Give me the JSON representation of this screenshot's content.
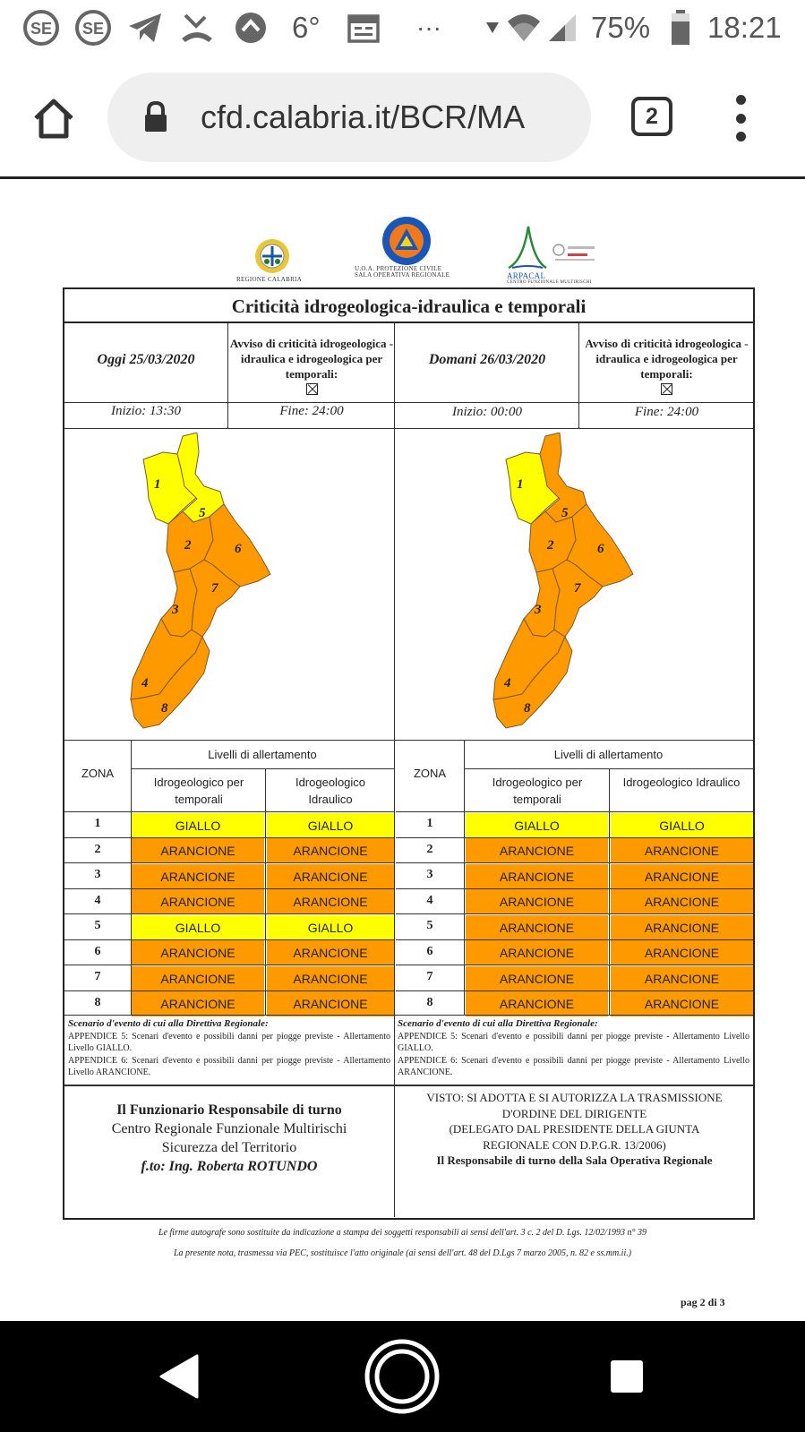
{
  "status_bar": {
    "temperature": "6°",
    "ellipsis": "···",
    "battery": "75%",
    "time": "18:21"
  },
  "browser": {
    "url": "cfd.calabria.it/BCR/MA",
    "tab_count": "2"
  },
  "doc": {
    "logos": {
      "regione": "REGIONE CALABRIA",
      "protezione_1": "U.O.A. PROTEZIONE CIVILE",
      "protezione_2": "SALA OPERATIVA REGIONALE",
      "arpacal": "ARPACAL",
      "arpacal_sub": "CENTRO FUNZIONALE MULTIRISCHI"
    },
    "title": "Criticità idrogeologica-idraulica e temporali",
    "today": {
      "date": "Oggi 25/03/2020",
      "avviso": "Avviso di criticità idrogeologica - idraulica e idrogeologica per temporali:",
      "start": "Inizio: 13:30",
      "end": "Fine: 24:00",
      "zone_colors": {
        "1": "#ffff00",
        "2": "#ff9900",
        "3": "#ff9900",
        "4": "#ff9900",
        "5": "#ffff00",
        "6": "#ff9900",
        "7": "#ff9900",
        "8": "#ff9900"
      }
    },
    "tomorrow": {
      "date": "Domani 26/03/2020",
      "avviso": "Avviso di criticità idrogeologica - idraulica e idrogeologica per temporali:",
      "start": "Inizio: 00:00",
      "end": "Fine: 24:00",
      "zone_colors": {
        "1": "#ffff00",
        "2": "#ff9900",
        "3": "#ff9900",
        "4": "#ff9900",
        "5": "#ff9900",
        "6": "#ff9900",
        "7": "#ff9900",
        "8": "#ff9900"
      }
    },
    "table_headers": {
      "zona": "ZONA",
      "livelli": "Livelli di allertamento",
      "col1": "Idrogeologico per temporali",
      "col2": "Idrogeologico Idraulico"
    },
    "today_rows": [
      {
        "zone": "1",
        "temporali": "GIALLO",
        "idraulico": "GIALLO"
      },
      {
        "zone": "2",
        "temporali": "ARANCIONE",
        "idraulico": "ARANCIONE"
      },
      {
        "zone": "3",
        "temporali": "ARANCIONE",
        "idraulico": "ARANCIONE"
      },
      {
        "zone": "4",
        "temporali": "ARANCIONE",
        "idraulico": "ARANCIONE"
      },
      {
        "zone": "5",
        "temporali": "GIALLO",
        "idraulico": "GIALLO"
      },
      {
        "zone": "6",
        "temporali": "ARANCIONE",
        "idraulico": "ARANCIONE"
      },
      {
        "zone": "7",
        "temporali": "ARANCIONE",
        "idraulico": "ARANCIONE"
      },
      {
        "zone": "8",
        "temporali": "ARANCIONE",
        "idraulico": "ARANCIONE"
      }
    ],
    "tomorrow_rows": [
      {
        "zone": "1",
        "temporali": "GIALLO",
        "idraulico": "GIALLO"
      },
      {
        "zone": "2",
        "temporali": "ARANCIONE",
        "idraulico": "ARANCIONE"
      },
      {
        "zone": "3",
        "temporali": "ARANCIONE",
        "idraulico": "ARANCIONE"
      },
      {
        "zone": "4",
        "temporali": "ARANCIONE",
        "idraulico": "ARANCIONE"
      },
      {
        "zone": "5",
        "temporali": "ARANCIONE",
        "idraulico": "ARANCIONE"
      },
      {
        "zone": "6",
        "temporali": "ARANCIONE",
        "idraulico": "ARANCIONE"
      },
      {
        "zone": "7",
        "temporali": "ARANCIONE",
        "idraulico": "ARANCIONE"
      },
      {
        "zone": "8",
        "temporali": "ARANCIONE",
        "idraulico": "ARANCIONE"
      }
    ],
    "scenario": {
      "title": "Scenario d'evento di cui alla Direttiva Regionale:",
      "app5": "APPENDICE 5: Scenari d'evento e possibili danni per piogge previste - Allertamento Livello GIALLO.",
      "app6": "APPENDICE 6: Scenari d'evento e possibili danni per piogge previste - Allertamento Livello ARANCIONE."
    },
    "signature_left": {
      "line1": "Il Funzionario Responsabile di turno",
      "line2": "Centro Regionale Funzionale Multirischi",
      "line3": "Sicurezza del Territorio",
      "line4": "f.to: Ing. Roberta ROTUNDO"
    },
    "signature_right": {
      "line1": "VISTO: SI ADOTTA E SI AUTORIZZA LA TRASMISSIONE",
      "line2": "D'ORDINE DEL DIRIGENTE",
      "line3": "(DELEGATO DAL PRESIDENTE DELLA GIUNTA",
      "line4": "REGIONALE CON D.P.G.R. 13/2006)",
      "line5": "Il Responsabile di turno della Sala Operativa Regionale"
    },
    "footnote1": "Le firme autografe sono sostituite da indicazione a stampa dei soggetti responsabili ai sensi dell'art. 3 c. 2 del D. Lgs. 12/02/1993 n° 39",
    "footnote2": "La presente nota, trasmessa via PEC, sostituisce l'atto originale (ai sensi dell'art. 48 del D.Lgs 7 marzo 2005, n. 82 e ss.mm.ii.)",
    "page": "pag 2 di 3"
  },
  "colors": {
    "giallo": "#ffff00",
    "arancione": "#ff9900"
  }
}
